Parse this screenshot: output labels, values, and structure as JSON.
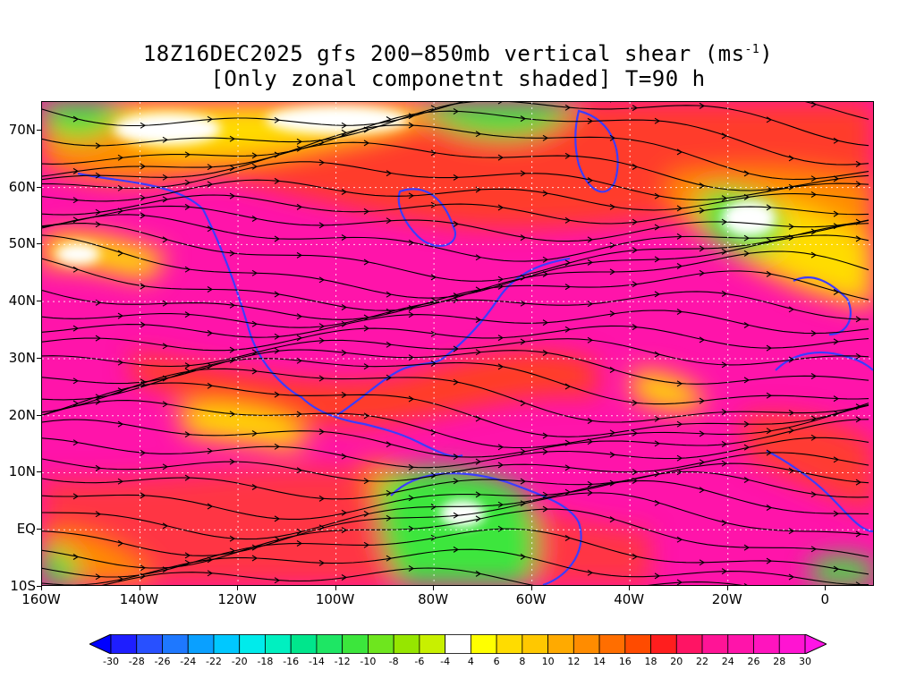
{
  "title": {
    "line1_prefix": "18Z16DEC2025 gfs 200−850mb vertical shear (ms",
    "line1_sup": "-1",
    "line1_suffix": ")",
    "line2": "[Only zonal componetnt shaded] T=90 h"
  },
  "axes": {
    "lat_labels": [
      "70N",
      "60N",
      "50N",
      "40N",
      "30N",
      "20N",
      "10N",
      "EQ",
      "10S"
    ],
    "lon_labels": [
      "160W",
      "140W",
      "120W",
      "100W",
      "80W",
      "60W",
      "40W",
      "20W",
      "0"
    ]
  },
  "colorbar": {
    "labels": [
      "-30",
      "-28",
      "-26",
      "-24",
      "-22",
      "-20",
      "-18",
      "-16",
      "-14",
      "-12",
      "-10",
      "-8",
      "-6",
      "-4",
      "4",
      "6",
      "8",
      "10",
      "12",
      "14",
      "16",
      "18",
      "20",
      "22",
      "24",
      "26",
      "28",
      "30"
    ],
    "colors": [
      "#1e1eff",
      "#2850ff",
      "#1e78ff",
      "#0aa0ff",
      "#00c8ff",
      "#00ebeb",
      "#00f0c0",
      "#00e68c",
      "#1ee664",
      "#3ce63c",
      "#6ee61e",
      "#96e600",
      "#c8f000",
      "#ffffff",
      "#ffff00",
      "#ffdc00",
      "#ffc800",
      "#ffaa00",
      "#ff8c00",
      "#ff6e00",
      "#ff4b00",
      "#ff1e1e",
      "#ff1464",
      "#ff1496",
      "#ff14aa",
      "#ff14be",
      "#ff14d2"
    ]
  },
  "map_colors": {
    "land_outline": "#3c3cff",
    "border": "#9030a0",
    "streamline": "#000000",
    "high_shear": "#ff14aa",
    "strong": "#ff4b00",
    "moderate": "#ff8c00",
    "weak": "#ffdc00",
    "near_zero": "#ffffff",
    "easterly": "#3ce63c"
  }
}
